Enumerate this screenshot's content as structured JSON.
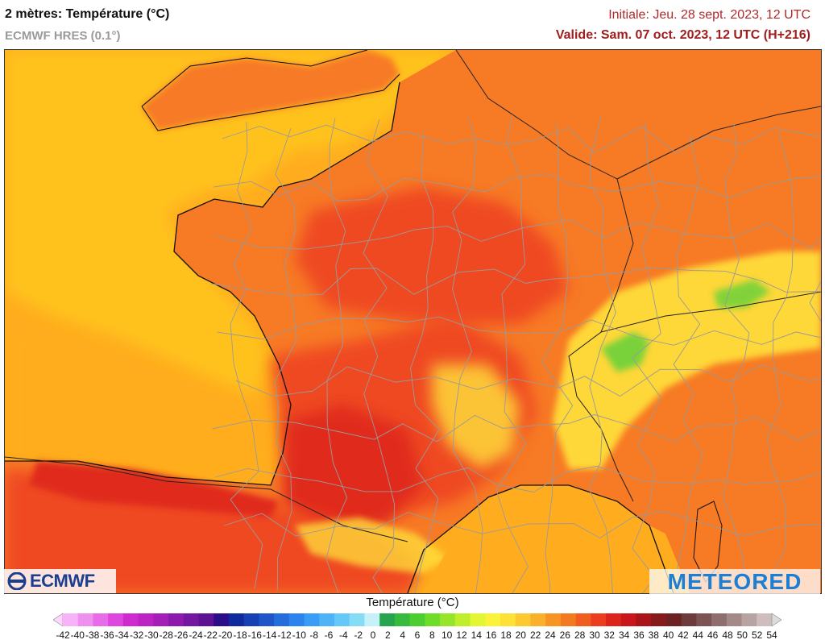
{
  "header": {
    "title": "2 mètres: Température (°C)",
    "model": "ECMWF HRES (0.1°)",
    "initial": "Initiale: Jeu. 28 sept. 2023, 12 UTC",
    "valid": "Valide: Sam. 07 oct. 2023, 12 UTC (H+216)"
  },
  "map": {
    "colors": {
      "sea_cool": "#ffc21c",
      "sea_mid": "#ffad1f",
      "land_warm": "#f77a25",
      "land_hot": "#ef4a22",
      "land_very_hot": "#e02a1c",
      "mountain_cool": "#ffe23a",
      "mountain_cold": "#62d23a",
      "border": "#9a9a9a",
      "coast": "#111111"
    },
    "icons": [
      "ecmwf-logo-icon",
      "meteored-logo-icon"
    ]
  },
  "logos": {
    "ecmwf": "ECMWF",
    "meteored": "METEORED"
  },
  "legend": {
    "title": "Température (°C)",
    "ticks": [
      "-42",
      "-40",
      "-38",
      "-36",
      "-34",
      "-32",
      "-30",
      "-28",
      "-26",
      "-24",
      "-22",
      "-20",
      "-18",
      "-16",
      "-14",
      "-12",
      "-10",
      "-8",
      "-6",
      "-4",
      "-2",
      "0",
      "2",
      "4",
      "6",
      "8",
      "10",
      "12",
      "14",
      "16",
      "18",
      "20",
      "22",
      "24",
      "26",
      "28",
      "30",
      "32",
      "34",
      "36",
      "38",
      "40",
      "42",
      "44",
      "46",
      "48",
      "50",
      "52",
      "54"
    ],
    "colors": [
      "#ffd6ff",
      "#f7b3f7",
      "#ef8fef",
      "#e86be8",
      "#df45df",
      "#cf2ccf",
      "#bc22c4",
      "#a51eb8",
      "#8d1aac",
      "#7516a0",
      "#5d1294",
      "#2b0d8a",
      "#102a9e",
      "#1740b4",
      "#1e56c8",
      "#266ddc",
      "#2e84ee",
      "#3a9cf7",
      "#4fb4f7",
      "#66c8f7",
      "#86dcf7",
      "#c7f1f9",
      "#28a44c",
      "#36bb3e",
      "#4cce32",
      "#6fdc2a",
      "#95e62a",
      "#bfef2c",
      "#e4f633",
      "#fbf23a",
      "#fde136",
      "#fdc930",
      "#fbb02a",
      "#f89424",
      "#f47a22",
      "#f15d20",
      "#ec3e1e",
      "#dc231c",
      "#c8161a",
      "#a81419",
      "#871a1a",
      "#6c2222",
      "#6e3b3b",
      "#7d5454",
      "#8f6e6e",
      "#a48989",
      "#b8a3a3",
      "#cdbdbd",
      "#dcdcdc"
    ]
  }
}
